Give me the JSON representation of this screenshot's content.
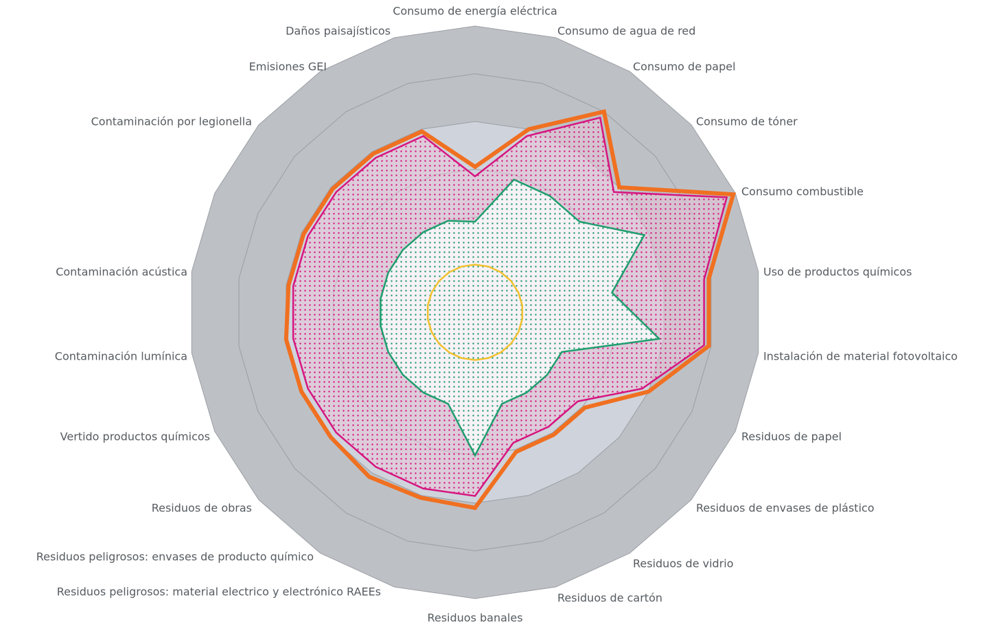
{
  "chart_data": {
    "type": "radar",
    "categories": [
      "Consumo de energía eléctrica",
      "Consumo de agua de red",
      "Consumo de papel",
      "Consumo de tóner",
      "Consumo combustible",
      "Uso de productos químicos",
      "Instalación de material fotovoltaico",
      "Residuos de papel",
      "Residuos de envases de plástico",
      "Residuos de vidrio",
      "Residuos de cartón",
      "Residuos banales",
      "Residuos peligrosos: material electrico  y electrónico RAEEs",
      "Residuos peligrosos: envases de producto químico",
      "Residuos de obras",
      "Vertido productos químicos",
      "Contaminación lumínica",
      "Contaminación acústica",
      null,
      "Contaminación por legionella",
      "Emisiones GEI",
      "Daños paisajísticos"
    ],
    "series": [
      {
        "color": "#d6157f",
        "values": [
          2.85,
          3.85,
          4.85,
          3.85,
          5.8,
          4.85,
          4.85,
          3.85,
          2.85,
          2.85,
          2.85,
          3.85,
          3.85,
          3.85,
          3.85,
          3.85,
          3.85,
          3.85,
          3.85,
          3.85,
          3.85,
          3.85
        ]
      },
      {
        "color": "#1f9e6e",
        "values": [
          1.9,
          2.9,
          2.9,
          2.9,
          3.9,
          2.9,
          3.9,
          2,
          2,
          2,
          2,
          3,
          2,
          2,
          2,
          2,
          2,
          2,
          2,
          2,
          2,
          2
        ]
      },
      {
        "color": "#f2c12e",
        "values": [
          1,
          1,
          1,
          1,
          1,
          1,
          1,
          1,
          1,
          1,
          1,
          1,
          1,
          1,
          1,
          1,
          1,
          1,
          1,
          1,
          1,
          1
        ]
      },
      {
        "color": "#f07021",
        "values": [
          3.05,
          4,
          5,
          4,
          5.95,
          4.95,
          4.95,
          4,
          3.05,
          3.05,
          3.05,
          4.1,
          4.05,
          4.1,
          4,
          4,
          4,
          3.95,
          3.95,
          3.95,
          3.95,
          3.95
        ]
      }
    ],
    "ylim": [
      0,
      6
    ],
    "yticks": [
      1,
      2,
      3,
      4,
      5,
      6
    ],
    "grid": true
  }
}
